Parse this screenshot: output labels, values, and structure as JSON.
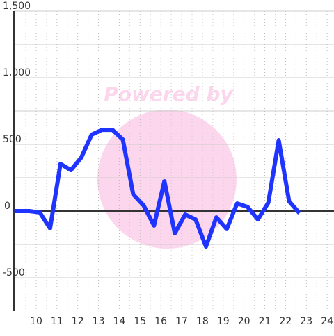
{
  "watermark": "Powered by",
  "chart_data": {
    "type": "line",
    "x": [
      8.95,
      9.67,
      10.17,
      10.67,
      11.17,
      11.67,
      12.17,
      12.67,
      13.17,
      13.67,
      14.17,
      14.67,
      15.17,
      15.67,
      16.17,
      16.67,
      17.17,
      17.67,
      18.17,
      18.67,
      19.17,
      19.67,
      20.17,
      20.67,
      21.17,
      21.67,
      22.17,
      22.67
    ],
    "series": [
      {
        "color": "#1f35ff",
        "values": [
          0,
          0,
          -10,
          -130,
          354,
          307,
          401,
          573,
          609,
          609,
          536,
          125,
          42,
          -109,
          224,
          -167,
          -26,
          -63,
          -266,
          -47,
          -135,
          57,
          31,
          -63,
          63,
          531,
          73,
          -16
        ]
      }
    ],
    "xlim": [
      8.93,
      24.33
    ],
    "xticks": [
      10,
      11,
      12,
      13,
      14,
      15,
      16,
      17,
      18,
      19,
      20,
      21,
      22,
      23,
      24
    ],
    "x_minor_ticks": [
      9.5,
      10.5,
      11.5,
      12.5,
      13.5,
      14.5,
      15.5,
      16.5,
      17.5,
      18.5,
      19.5,
      20.5,
      21.5,
      22.5,
      23.5
    ],
    "ylim": [
      -750,
      1500
    ],
    "yticks": [
      {
        "value": -500,
        "label": "-500"
      },
      0,
      500,
      {
        "value": 1000,
        "label": "1,000"
      },
      {
        "value": 1500,
        "label": "1,500"
      }
    ],
    "y_minor_ticks": [
      -250,
      250,
      750,
      1250
    ],
    "grid": true
  }
}
